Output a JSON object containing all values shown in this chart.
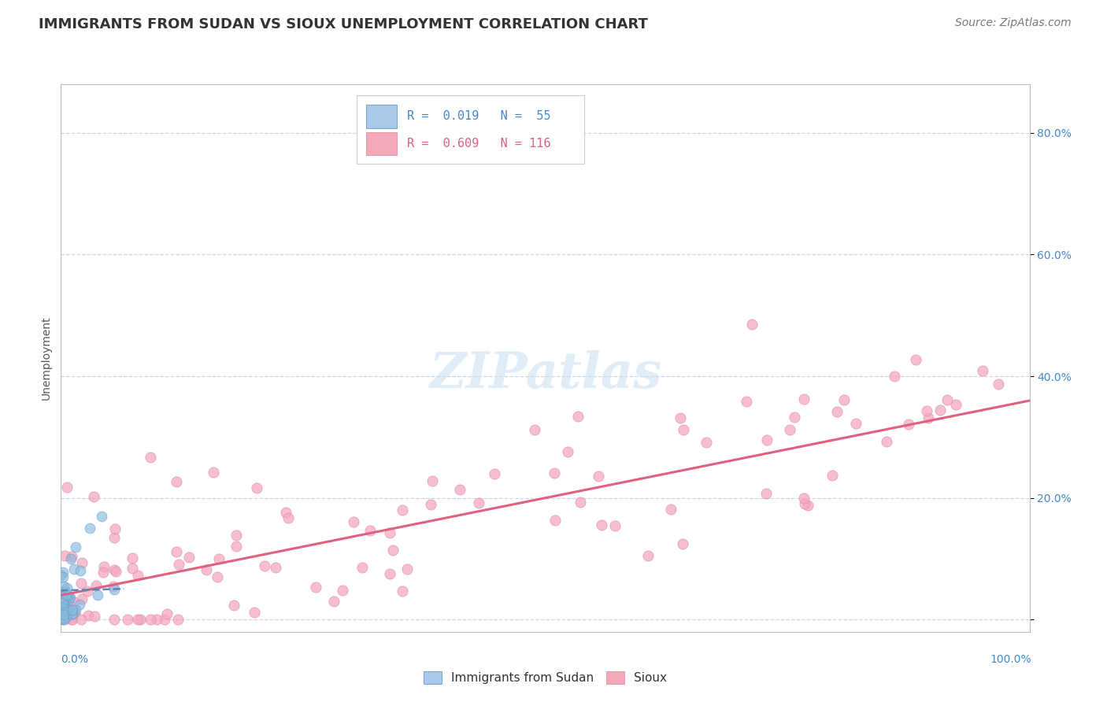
{
  "title": "IMMIGRANTS FROM SUDAN VS SIOUX UNEMPLOYMENT CORRELATION CHART",
  "source": "Source: ZipAtlas.com",
  "ylabel": "Unemployment",
  "legend_color1": "#aac8e8",
  "legend_color2": "#f4a8b8",
  "blue_scatter_color": "#88bbdd",
  "pink_scatter_color": "#f4a8c0",
  "blue_line_color": "#5588bb",
  "pink_line_color": "#e06080",
  "background_color": "#ffffff",
  "grid_color": "#c8d8ea",
  "xlim": [
    0.0,
    1.0
  ],
  "ylim": [
    -0.02,
    0.88
  ],
  "title_fontsize": 13,
  "axis_label_fontsize": 10,
  "tick_fontsize": 10,
  "source_fontsize": 10,
  "legend_fontsize": 11,
  "blue_line_intercept": 0.048,
  "blue_line_slope": 0.04,
  "blue_line_xend": 0.065,
  "pink_line_intercept": 0.04,
  "pink_line_slope": 0.32,
  "pink_line_xend": 1.0
}
